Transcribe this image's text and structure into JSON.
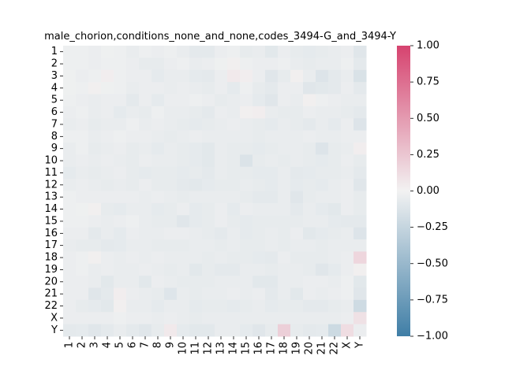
{
  "chart_data": {
    "type": "heatmap",
    "title": "male_chorion,conditions_none_and_none,codes_3494-G_and_3494-Y",
    "xlabel": "",
    "ylabel": "",
    "x_labels": [
      "1",
      "2",
      "3",
      "4",
      "5",
      "6",
      "7",
      "8",
      "9",
      "10",
      "11",
      "12",
      "13",
      "14",
      "15",
      "16",
      "17",
      "18",
      "19",
      "20",
      "21",
      "22",
      "X",
      "Y"
    ],
    "y_labels": [
      "1",
      "2",
      "3",
      "4",
      "5",
      "6",
      "7",
      "8",
      "9",
      "10",
      "11",
      "12",
      "13",
      "14",
      "15",
      "16",
      "17",
      "18",
      "19",
      "20",
      "21",
      "22",
      "X",
      "Y"
    ],
    "colorbar": {
      "ticks": [
        "1.00",
        "0.75",
        "0.50",
        "0.25",
        "0.00",
        "−0.25",
        "−0.50",
        "−0.75",
        "−1.00"
      ],
      "tick_values": [
        1.0,
        0.75,
        0.5,
        0.25,
        0.0,
        -0.25,
        -0.5,
        -0.75,
        -1.0
      ],
      "vmin": -1.0,
      "vmax": 1.0,
      "colors": {
        "low": "#3f7ea6",
        "mid": "#f2f2f2",
        "high": "#d6436f"
      }
    },
    "matrix": [
      [
        -0.03,
        -0.03,
        -0.04,
        -0.02,
        -0.03,
        -0.05,
        -0.03,
        -0.04,
        -0.03,
        -0.05,
        -0.08,
        -0.08,
        -0.04,
        -0.03,
        -0.06,
        -0.05,
        -0.09,
        -0.04,
        -0.06,
        -0.07,
        -0.06,
        -0.05,
        -0.04,
        -0.1
      ],
      [
        -0.03,
        -0.03,
        -0.04,
        -0.03,
        -0.03,
        -0.04,
        -0.06,
        -0.06,
        -0.04,
        -0.03,
        -0.05,
        -0.04,
        -0.02,
        0.02,
        -0.03,
        -0.04,
        -0.04,
        -0.03,
        -0.05,
        -0.06,
        -0.05,
        -0.05,
        -0.03,
        -0.08
      ],
      [
        -0.02,
        -0.04,
        -0.03,
        0.03,
        -0.03,
        -0.04,
        -0.04,
        -0.07,
        -0.05,
        -0.05,
        -0.07,
        -0.08,
        -0.04,
        0.05,
        0.03,
        -0.04,
        -0.1,
        -0.06,
        0.02,
        -0.05,
        -0.12,
        -0.08,
        -0.05,
        -0.14
      ],
      [
        -0.02,
        -0.03,
        0.02,
        -0.02,
        -0.03,
        -0.05,
        -0.04,
        -0.04,
        -0.05,
        -0.04,
        -0.05,
        -0.06,
        -0.04,
        -0.07,
        -0.03,
        -0.06,
        -0.08,
        -0.04,
        -0.04,
        -0.1,
        -0.09,
        -0.08,
        -0.04,
        -0.08
      ],
      [
        -0.03,
        -0.04,
        -0.05,
        -0.04,
        -0.04,
        -0.08,
        -0.04,
        -0.07,
        -0.04,
        -0.04,
        -0.03,
        -0.04,
        -0.06,
        -0.05,
        -0.04,
        -0.07,
        -0.1,
        -0.04,
        -0.05,
        0.02,
        -0.03,
        -0.04,
        -0.05,
        -0.05
      ],
      [
        -0.04,
        -0.03,
        -0.05,
        -0.04,
        -0.07,
        -0.05,
        -0.06,
        -0.03,
        -0.05,
        -0.05,
        -0.06,
        -0.08,
        -0.04,
        -0.05,
        0.02,
        0.03,
        -0.05,
        -0.06,
        -0.06,
        -0.04,
        -0.05,
        -0.05,
        -0.06,
        -0.08
      ],
      [
        -0.05,
        -0.04,
        -0.06,
        -0.05,
        -0.05,
        -0.03,
        -0.05,
        -0.04,
        -0.05,
        -0.06,
        -0.07,
        -0.06,
        -0.05,
        -0.04,
        -0.05,
        -0.06,
        -0.07,
        -0.05,
        -0.06,
        -0.08,
        -0.05,
        -0.07,
        -0.04,
        -0.12
      ],
      [
        -0.03,
        -0.03,
        -0.05,
        -0.04,
        -0.03,
        -0.04,
        -0.04,
        -0.05,
        -0.06,
        -0.05,
        -0.04,
        -0.05,
        -0.05,
        -0.05,
        -0.05,
        -0.06,
        -0.05,
        -0.05,
        -0.05,
        -0.04,
        -0.05,
        -0.05,
        -0.04,
        -0.04
      ],
      [
        -0.05,
        -0.03,
        -0.06,
        -0.05,
        -0.04,
        -0.06,
        -0.05,
        -0.07,
        -0.05,
        -0.06,
        -0.07,
        -0.09,
        -0.05,
        -0.06,
        -0.06,
        -0.07,
        -0.06,
        -0.05,
        -0.05,
        -0.06,
        -0.12,
        -0.06,
        -0.05,
        0.03
      ],
      [
        -0.05,
        -0.04,
        -0.05,
        -0.04,
        -0.05,
        -0.06,
        -0.04,
        -0.05,
        -0.05,
        -0.06,
        -0.07,
        -0.09,
        -0.05,
        -0.06,
        -0.13,
        -0.06,
        -0.05,
        -0.06,
        -0.05,
        -0.06,
        -0.07,
        -0.06,
        -0.04,
        -0.06
      ],
      [
        -0.07,
        -0.05,
        -0.06,
        -0.05,
        -0.04,
        -0.06,
        -0.07,
        -0.06,
        -0.06,
        -0.07,
        -0.06,
        -0.08,
        -0.05,
        -0.06,
        -0.06,
        -0.07,
        -0.07,
        -0.05,
        -0.08,
        -0.07,
        -0.06,
        -0.06,
        -0.05,
        -0.08
      ],
      [
        -0.05,
        -0.04,
        -0.05,
        -0.06,
        -0.05,
        -0.06,
        -0.04,
        -0.06,
        -0.06,
        -0.08,
        -0.09,
        -0.07,
        -0.06,
        -0.06,
        -0.05,
        -0.06,
        -0.07,
        -0.05,
        -0.07,
        -0.06,
        -0.07,
        -0.05,
        -0.04,
        -0.1
      ],
      [
        -0.03,
        -0.04,
        -0.04,
        -0.04,
        -0.04,
        -0.04,
        -0.05,
        -0.04,
        -0.05,
        -0.06,
        -0.05,
        -0.05,
        -0.05,
        -0.05,
        -0.06,
        -0.08,
        -0.08,
        -0.05,
        -0.1,
        -0.06,
        -0.05,
        -0.05,
        -0.04,
        -0.06
      ],
      [
        -0.03,
        -0.02,
        0.02,
        -0.06,
        -0.07,
        -0.05,
        -0.05,
        -0.07,
        -0.06,
        -0.04,
        -0.07,
        -0.06,
        -0.04,
        -0.07,
        -0.04,
        -0.05,
        -0.05,
        -0.05,
        -0.08,
        -0.05,
        -0.07,
        -0.09,
        -0.04,
        -0.06
      ],
      [
        -0.03,
        -0.03,
        -0.04,
        -0.05,
        -0.04,
        -0.03,
        -0.05,
        -0.06,
        -0.06,
        -0.1,
        -0.07,
        -0.06,
        -0.04,
        -0.06,
        -0.07,
        -0.06,
        -0.06,
        -0.06,
        -0.06,
        -0.05,
        -0.05,
        -0.07,
        -0.08,
        -0.08
      ],
      [
        -0.04,
        -0.04,
        -0.08,
        -0.05,
        -0.07,
        -0.04,
        -0.05,
        -0.05,
        -0.04,
        -0.04,
        -0.05,
        -0.06,
        -0.08,
        -0.05,
        -0.07,
        -0.06,
        -0.05,
        -0.06,
        -0.04,
        -0.09,
        -0.07,
        -0.06,
        -0.05,
        -0.12
      ],
      [
        -0.05,
        -0.06,
        -0.06,
        -0.08,
        -0.07,
        -0.05,
        -0.05,
        -0.06,
        -0.06,
        -0.06,
        -0.05,
        -0.05,
        -0.06,
        -0.05,
        -0.06,
        -0.06,
        -0.05,
        -0.06,
        -0.05,
        -0.05,
        -0.06,
        -0.05,
        -0.05,
        -0.05
      ],
      [
        -0.04,
        -0.03,
        0.02,
        -0.04,
        -0.05,
        -0.04,
        -0.05,
        -0.04,
        -0.05,
        -0.05,
        -0.05,
        -0.06,
        -0.05,
        -0.06,
        -0.06,
        -0.07,
        -0.08,
        -0.04,
        -0.06,
        -0.06,
        -0.06,
        -0.05,
        -0.04,
        0.16
      ],
      [
        -0.04,
        -0.03,
        -0.05,
        -0.04,
        -0.05,
        -0.05,
        -0.04,
        -0.05,
        -0.06,
        -0.05,
        -0.09,
        -0.06,
        -0.08,
        -0.08,
        -0.05,
        -0.05,
        -0.06,
        -0.05,
        -0.05,
        -0.06,
        -0.1,
        -0.07,
        -0.04,
        0.02
      ],
      [
        -0.04,
        -0.04,
        -0.05,
        -0.09,
        -0.05,
        -0.05,
        -0.09,
        -0.04,
        -0.05,
        -0.06,
        -0.06,
        -0.06,
        -0.05,
        -0.05,
        -0.05,
        -0.09,
        -0.09,
        -0.05,
        -0.05,
        -0.04,
        -0.04,
        -0.05,
        -0.03,
        -0.09
      ],
      [
        -0.04,
        -0.04,
        -0.1,
        -0.08,
        0.03,
        -0.04,
        -0.05,
        -0.06,
        -0.11,
        -0.05,
        -0.06,
        -0.05,
        -0.05,
        -0.04,
        -0.05,
        -0.04,
        -0.08,
        -0.05,
        -0.09,
        -0.04,
        -0.05,
        -0.04,
        -0.03,
        -0.1
      ],
      [
        -0.04,
        -0.06,
        -0.07,
        -0.09,
        0.02,
        -0.05,
        -0.05,
        -0.07,
        -0.05,
        -0.05,
        -0.07,
        -0.06,
        -0.06,
        -0.07,
        -0.06,
        -0.05,
        -0.07,
        -0.06,
        -0.06,
        -0.08,
        -0.08,
        -0.06,
        -0.05,
        -0.2
      ],
      [
        -0.04,
        -0.04,
        -0.04,
        -0.04,
        -0.03,
        -0.04,
        -0.04,
        -0.05,
        -0.04,
        -0.05,
        -0.06,
        -0.05,
        -0.05,
        -0.05,
        -0.05,
        -0.05,
        -0.05,
        -0.05,
        -0.05,
        -0.05,
        -0.05,
        -0.05,
        -0.04,
        0.1
      ],
      [
        -0.08,
        -0.07,
        -0.1,
        -0.08,
        -0.05,
        -0.08,
        -0.1,
        -0.06,
        0.05,
        -0.07,
        -0.09,
        -0.09,
        -0.05,
        -0.05,
        -0.07,
        -0.1,
        -0.06,
        0.2,
        -0.06,
        -0.08,
        -0.07,
        -0.21,
        0.12,
        -0.04
      ]
    ]
  }
}
